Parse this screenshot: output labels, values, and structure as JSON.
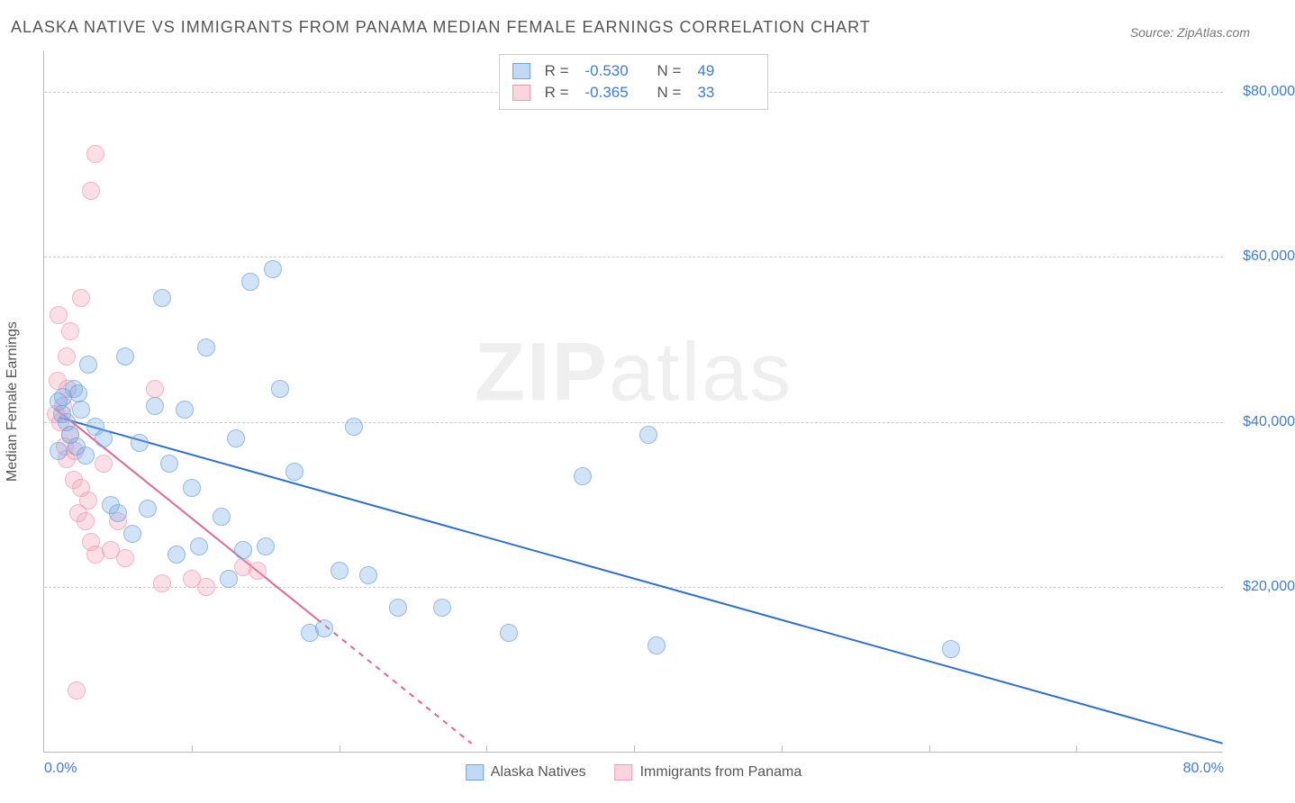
{
  "title": "ALASKA NATIVE VS IMMIGRANTS FROM PANAMA MEDIAN FEMALE EARNINGS CORRELATION CHART",
  "source": "Source: ZipAtlas.com",
  "ylabel": "Median Female Earnings",
  "watermark_zip": "ZIP",
  "watermark_atlas": "atlas",
  "chart": {
    "type": "scatter",
    "xlim": [
      0,
      80
    ],
    "ylim": [
      0,
      85000
    ],
    "x_unit_suffix": "%",
    "y_unit_prefix": "$",
    "grid_color": "#cccccc",
    "background_color": "#ffffff",
    "marker_radius": 10,
    "y_ticks": [
      20000,
      40000,
      60000,
      80000
    ],
    "y_tick_labels": [
      "$20,000",
      "$40,000",
      "$60,000",
      "$80,000"
    ],
    "x_ticks": [
      0,
      80
    ],
    "x_tick_labels": [
      "0.0%",
      "80.0%"
    ],
    "x_minor_ticks": [
      10,
      20,
      30,
      40,
      50,
      60,
      70
    ]
  },
  "series_a": {
    "name": "Alaska Natives",
    "color_fill": "rgba(120,170,230,0.45)",
    "color_stroke": "#6fa3e0",
    "trend_color": "#2d6fd1",
    "trend_width": 2,
    "R": "-0.530",
    "N": "49",
    "trend": {
      "x1": 1,
      "y1": 40500,
      "x2": 80,
      "y2": 1000,
      "dashed_from_x": null
    },
    "points": [
      [
        1.0,
        42500
      ],
      [
        1.2,
        41000
      ],
      [
        1.3,
        43000
      ],
      [
        1.5,
        40000
      ],
      [
        1.8,
        38500
      ],
      [
        2.0,
        44000
      ],
      [
        2.2,
        37000
      ],
      [
        2.5,
        41500
      ],
      [
        2.8,
        36000
      ],
      [
        3.0,
        47000
      ],
      [
        3.5,
        39500
      ],
      [
        4.0,
        38000
      ],
      [
        4.5,
        30000
      ],
      [
        5.0,
        29000
      ],
      [
        5.5,
        48000
      ],
      [
        6.0,
        26500
      ],
      [
        6.5,
        37500
      ],
      [
        7.0,
        29500
      ],
      [
        7.5,
        42000
      ],
      [
        8.0,
        55000
      ],
      [
        8.5,
        35000
      ],
      [
        9.0,
        24000
      ],
      [
        9.5,
        41500
      ],
      [
        10.0,
        32000
      ],
      [
        10.5,
        25000
      ],
      [
        11.0,
        49000
      ],
      [
        12.0,
        28500
      ],
      [
        12.5,
        21000
      ],
      [
        13.0,
        38000
      ],
      [
        13.5,
        24500
      ],
      [
        14.0,
        57000
      ],
      [
        15.0,
        25000
      ],
      [
        15.5,
        58500
      ],
      [
        16.0,
        44000
      ],
      [
        17.0,
        34000
      ],
      [
        18.0,
        14500
      ],
      [
        19.0,
        15000
      ],
      [
        20.0,
        22000
      ],
      [
        21.0,
        39500
      ],
      [
        22.0,
        21500
      ],
      [
        24.0,
        17500
      ],
      [
        27.0,
        17500
      ],
      [
        31.5,
        14500
      ],
      [
        36.5,
        33500
      ],
      [
        41.0,
        38500
      ],
      [
        41.5,
        13000
      ],
      [
        61.5,
        12500
      ],
      [
        1.0,
        36500
      ],
      [
        2.3,
        43500
      ]
    ]
  },
  "series_b": {
    "name": "Immigrants from Panama",
    "color_fill": "rgba(244,160,185,0.45)",
    "color_stroke": "#f19ab6",
    "trend_color": "#e5648f",
    "trend_width": 2,
    "R": "-0.365",
    "N": "33",
    "trend": {
      "x1": 0.8,
      "y1": 41500,
      "x2": 29,
      "y2": 1000,
      "dashed_from_x": 18.5
    },
    "points": [
      [
        0.8,
        41000
      ],
      [
        0.9,
        45000
      ],
      [
        1.0,
        53000
      ],
      [
        1.1,
        40000
      ],
      [
        1.3,
        42000
      ],
      [
        1.4,
        37000
      ],
      [
        1.5,
        35500
      ],
      [
        1.6,
        44000
      ],
      [
        1.8,
        51000
      ],
      [
        1.8,
        38500
      ],
      [
        2.0,
        33000
      ],
      [
        2.1,
        36500
      ],
      [
        2.3,
        29000
      ],
      [
        2.5,
        55000
      ],
      [
        2.5,
        32000
      ],
      [
        2.8,
        28000
      ],
      [
        3.0,
        30500
      ],
      [
        3.2,
        25500
      ],
      [
        3.5,
        24000
      ],
      [
        3.2,
        68000
      ],
      [
        3.5,
        72500
      ],
      [
        4.0,
        35000
      ],
      [
        4.5,
        24500
      ],
      [
        5.0,
        28000
      ],
      [
        5.5,
        23500
      ],
      [
        7.5,
        44000
      ],
      [
        8.0,
        20500
      ],
      [
        10.0,
        21000
      ],
      [
        11.0,
        20000
      ],
      [
        13.5,
        22500
      ],
      [
        14.5,
        22000
      ],
      [
        2.2,
        7500
      ],
      [
        1.5,
        48000
      ]
    ]
  },
  "legend_top": {
    "r_label": "R =",
    "n_label": "N ="
  },
  "legend_bottom": {
    "a_label": "Alaska Natives",
    "b_label": "Immigrants from Panama"
  }
}
